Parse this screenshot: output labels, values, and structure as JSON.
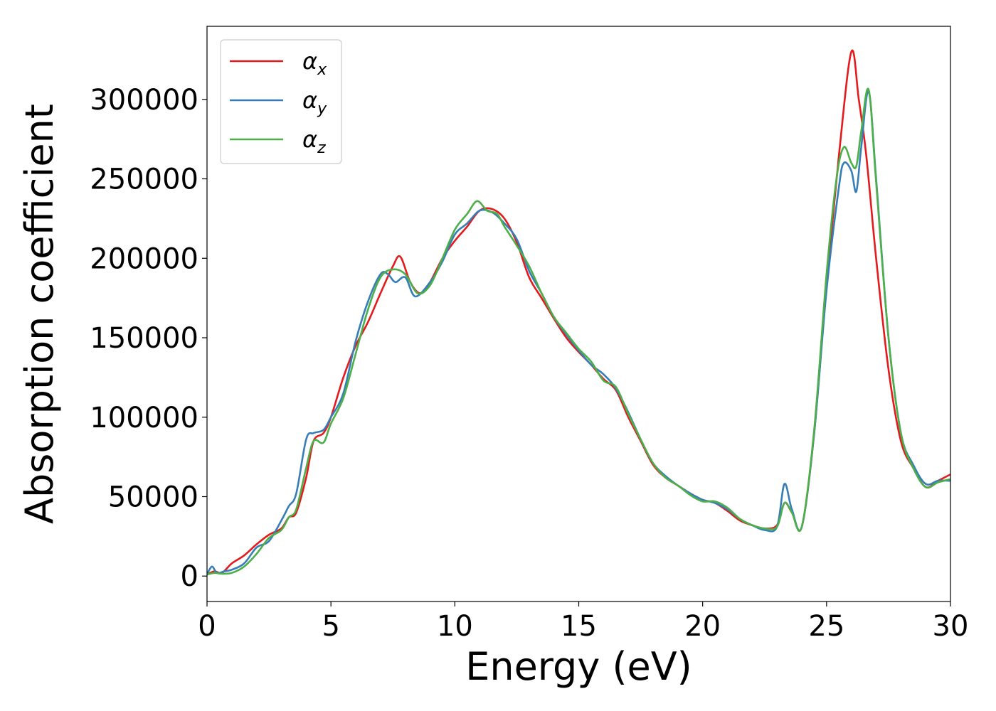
{
  "chart_data": {
    "type": "line",
    "title": "",
    "xlabel": "Energy (eV)",
    "ylabel": "Absorption coefficient",
    "xlim": [
      0,
      30
    ],
    "ylim": [
      -16000,
      346000
    ],
    "xticks": [
      0,
      5,
      10,
      15,
      20,
      25,
      30
    ],
    "yticks": [
      0,
      50000,
      100000,
      150000,
      200000,
      250000,
      300000
    ],
    "xtick_labels": [
      "0",
      "5",
      "10",
      "15",
      "20",
      "25",
      "30"
    ],
    "ytick_labels": [
      "0",
      "50000",
      "100000",
      "150000",
      "200000",
      "250000",
      "300000"
    ],
    "grid": false,
    "legend_position": "top-left",
    "series": [
      {
        "name": "α_x",
        "symbol": "α",
        "subscript": "x",
        "color": "#e41a1c",
        "x": [
          0,
          0.3,
          0.6,
          1.0,
          1.5,
          2.0,
          2.5,
          3.0,
          3.3,
          3.6,
          4.0,
          4.3,
          4.7,
          5.0,
          5.5,
          6.0,
          6.5,
          7.0,
          7.5,
          7.8,
          8.2,
          8.6,
          9.0,
          9.5,
          10.0,
          10.5,
          11.0,
          11.5,
          12.0,
          12.5,
          13.0,
          13.5,
          14.0,
          14.5,
          15.0,
          15.5,
          16.0,
          16.5,
          17.0,
          17.5,
          18.0,
          18.5,
          19.0,
          19.5,
          20.0,
          20.5,
          21.0,
          21.5,
          22.0,
          22.5,
          23.0,
          23.3,
          23.6,
          24.0,
          24.5,
          25.0,
          25.5,
          26.0,
          26.3,
          26.6,
          27.0,
          27.5,
          28.0,
          28.5,
          29.0,
          29.5,
          30.0
        ],
        "y": [
          1000,
          3000,
          2000,
          8000,
          13000,
          20000,
          26000,
          30000,
          37000,
          40000,
          62000,
          85000,
          90000,
          100000,
          125000,
          145000,
          160000,
          178000,
          195000,
          201000,
          185000,
          178000,
          185000,
          200000,
          211000,
          220000,
          230000,
          231000,
          225000,
          210000,
          188000,
          175000,
          162000,
          150000,
          141000,
          133000,
          124000,
          117000,
          100000,
          85000,
          70000,
          62000,
          57000,
          52000,
          48000,
          46000,
          41000,
          35000,
          32000,
          30000,
          32000,
          46000,
          40000,
          31000,
          90000,
          185000,
          265000,
          330000,
          300000,
          265000,
          200000,
          130000,
          85000,
          68000,
          56000,
          60000,
          64000
        ]
      },
      {
        "name": "α_y",
        "symbol": "α",
        "subscript": "y",
        "color": "#377eb8",
        "x": [
          0,
          0.2,
          0.4,
          0.7,
          1.0,
          1.5,
          2.0,
          2.5,
          3.0,
          3.3,
          3.6,
          4.0,
          4.3,
          4.7,
          5.0,
          5.5,
          6.0,
          6.5,
          7.0,
          7.3,
          7.6,
          8.0,
          8.4,
          9.0,
          9.5,
          10.0,
          10.5,
          11.0,
          11.5,
          12.0,
          12.5,
          13.0,
          13.5,
          14.0,
          14.5,
          15.0,
          15.5,
          16.0,
          16.5,
          17.0,
          17.5,
          18.0,
          18.5,
          19.0,
          19.5,
          20.0,
          20.5,
          21.0,
          21.5,
          22.0,
          22.5,
          23.0,
          23.3,
          23.6,
          24.0,
          24.5,
          25.0,
          25.5,
          25.7,
          26.0,
          26.2,
          26.4,
          26.7,
          27.0,
          27.5,
          28.0,
          28.5,
          29.0,
          29.5,
          30.0
        ],
        "y": [
          1000,
          6000,
          2000,
          3000,
          4000,
          8000,
          18000,
          22000,
          35000,
          44000,
          52000,
          86000,
          90000,
          92000,
          100000,
          115000,
          148000,
          173000,
          190000,
          190000,
          185000,
          188000,
          176000,
          185000,
          198000,
          215000,
          222000,
          230000,
          229000,
          222000,
          212000,
          192000,
          178000,
          163000,
          152000,
          142000,
          133000,
          127000,
          118000,
          103000,
          86000,
          71000,
          63000,
          57000,
          52000,
          48000,
          46000,
          42000,
          36000,
          32000,
          29000,
          31000,
          58000,
          42000,
          31000,
          90000,
          180000,
          245000,
          260000,
          255000,
          242000,
          270000,
          305000,
          250000,
          150000,
          90000,
          70000,
          58000,
          60000,
          60000
        ]
      },
      {
        "name": "α_z",
        "symbol": "α",
        "subscript": "z",
        "color": "#4daf4a",
        "x": [
          0,
          0.3,
          0.6,
          1.0,
          1.5,
          2.0,
          2.5,
          3.0,
          3.3,
          3.6,
          4.0,
          4.3,
          4.7,
          5.0,
          5.5,
          6.0,
          6.5,
          7.0,
          7.5,
          8.0,
          8.5,
          9.0,
          9.5,
          10.0,
          10.5,
          10.9,
          11.3,
          11.7,
          12.0,
          12.5,
          13.0,
          13.5,
          14.0,
          14.5,
          15.0,
          15.5,
          16.0,
          16.5,
          17.0,
          17.5,
          18.0,
          18.5,
          19.0,
          19.5,
          20.0,
          20.5,
          21.0,
          21.5,
          22.0,
          22.5,
          23.0,
          23.3,
          23.6,
          24.0,
          24.5,
          25.0,
          25.4,
          25.7,
          26.0,
          26.2,
          26.4,
          26.7,
          27.0,
          27.5,
          28.0,
          28.5,
          29.0,
          29.5,
          30.0
        ],
        "y": [
          1000,
          2000,
          1500,
          2000,
          6000,
          14000,
          24000,
          29000,
          37000,
          42000,
          68000,
          85000,
          84000,
          96000,
          112000,
          140000,
          168000,
          188000,
          193000,
          190000,
          178000,
          183000,
          200000,
          218000,
          228000,
          236000,
          230000,
          228000,
          220000,
          208000,
          195000,
          178000,
          163000,
          153000,
          143000,
          135000,
          123000,
          119000,
          102000,
          86000,
          71000,
          62000,
          57000,
          51000,
          47000,
          47000,
          43000,
          36000,
          32000,
          30000,
          31000,
          46000,
          40000,
          31000,
          92000,
          190000,
          250000,
          270000,
          260000,
          258000,
          280000,
          306000,
          248000,
          150000,
          90000,
          68000,
          56000,
          59000,
          61000
        ]
      }
    ]
  }
}
